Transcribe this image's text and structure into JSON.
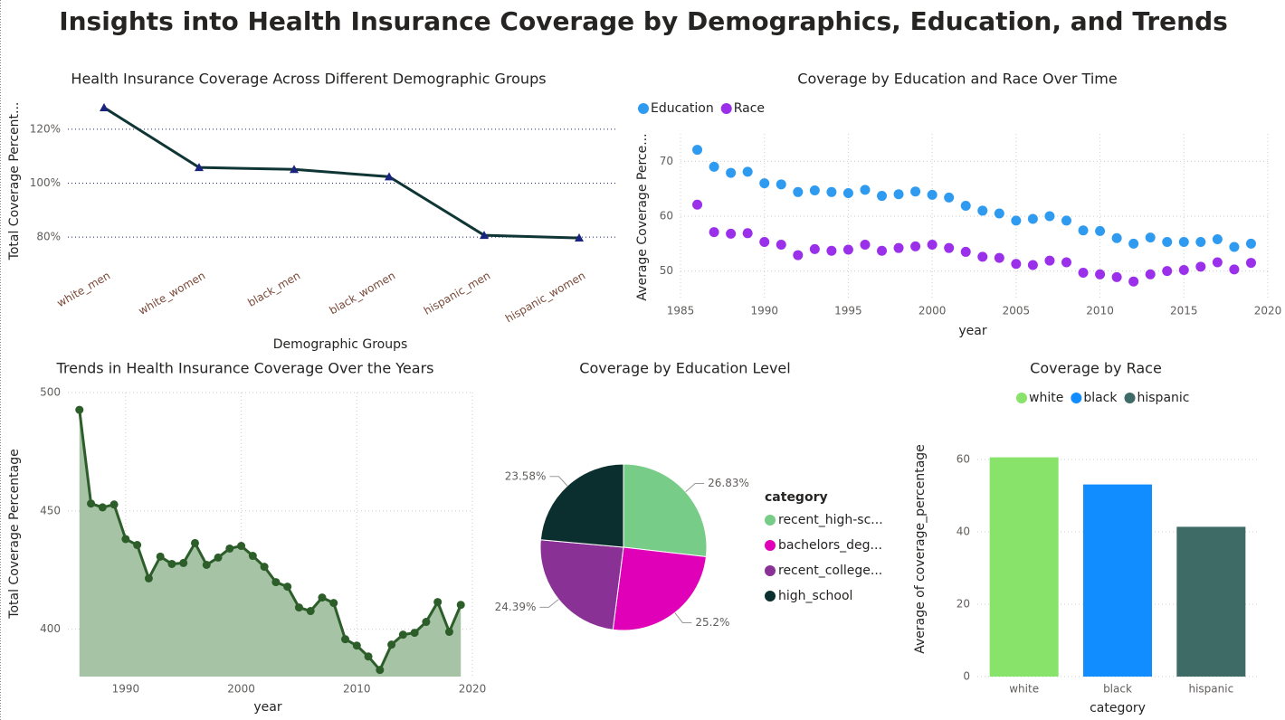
{
  "title": "Insights into Health Insurance Coverage by Demographics, Education, and Trends",
  "chart_data": [
    {
      "type": "line",
      "title": "Health Insurance Coverage Across Different Demographic Groups",
      "x_label": "Demographic Groups",
      "y_label": "Total Coverage Percent...",
      "categories": [
        "white_men",
        "white_women",
        "black_men",
        "black_women",
        "hispanic_men",
        "hispanic_women"
      ],
      "values": [
        128,
        105.8,
        105.1,
        102.4,
        80.7,
        79.7
      ],
      "color": "#0f3535",
      "marker_color": "#1a237e",
      "ylim": [
        70,
        131
      ],
      "yticks": [
        {
          "value": 80,
          "label": "80%"
        },
        {
          "value": 100,
          "label": "100%"
        },
        {
          "value": 120,
          "label": "120%"
        }
      ],
      "grid": true
    },
    {
      "type": "scatter",
      "title": "Coverage by Education and Race Over Time",
      "x_label": "year",
      "y_label": "Average Coverage Perce...",
      "x": [
        1986,
        1987,
        1988,
        1989,
        1990,
        1991,
        1992,
        1993,
        1994,
        1995,
        1996,
        1997,
        1998,
        1999,
        2000,
        2001,
        2002,
        2003,
        2004,
        2005,
        2006,
        2007,
        2008,
        2009,
        2010,
        2011,
        2012,
        2013,
        2014,
        2015,
        2016,
        2017,
        2018,
        2019
      ],
      "series": [
        {
          "name": "Education",
          "color": "#2f9bf0",
          "values": [
            72.1,
            69.0,
            67.9,
            68.1,
            66.0,
            65.8,
            64.4,
            64.7,
            64.4,
            64.2,
            64.8,
            63.7,
            64.0,
            64.5,
            63.9,
            63.4,
            61.9,
            61.0,
            60.5,
            59.2,
            59.5,
            60.0,
            59.2,
            57.4,
            57.3,
            56.0,
            55.0,
            56.1,
            55.3,
            55.3,
            55.3,
            55.8,
            54.4,
            55.0
          ]
        },
        {
          "name": "Race",
          "color": "#9b30ea",
          "values": [
            62.1,
            57.1,
            56.8,
            56.9,
            55.3,
            54.8,
            52.9,
            54.0,
            53.7,
            53.9,
            54.8,
            53.7,
            54.2,
            54.5,
            54.8,
            54.2,
            53.5,
            52.6,
            52.4,
            51.3,
            51.1,
            51.9,
            51.6,
            49.7,
            49.4,
            48.9,
            48.1,
            49.4,
            50.0,
            50.2,
            50.8,
            51.6,
            50.3,
            51.5
          ]
        }
      ],
      "xlim": [
        1985,
        2020
      ],
      "xticks": [
        1985,
        1990,
        1995,
        2000,
        2005,
        2010,
        2015,
        2020
      ],
      "ylim": [
        45,
        75
      ],
      "yticks": [
        50,
        60,
        70
      ],
      "grid": true
    },
    {
      "type": "area",
      "title": "Trends in Health Insurance Coverage Over the Years",
      "x_label": "year",
      "y_label": "Total Coverage Percentage",
      "x": [
        1986,
        1987,
        1988,
        1989,
        1990,
        1991,
        1992,
        1993,
        1994,
        1995,
        1996,
        1997,
        1998,
        1999,
        2000,
        2001,
        2002,
        2003,
        2004,
        2005,
        2006,
        2007,
        2008,
        2009,
        2010,
        2011,
        2012,
        2013,
        2014,
        2015,
        2016,
        2017,
        2018,
        2019
      ],
      "values": [
        492.7,
        453.1,
        451.5,
        452.7,
        438.1,
        435.6,
        421.5,
        430.7,
        427.6,
        428.0,
        436.4,
        427.2,
        430.3,
        434.1,
        435.2,
        431.0,
        426.4,
        419.9,
        418.0,
        409.2,
        407.7,
        413.4,
        411.1,
        395.8,
        393.1,
        388.5,
        382.8,
        393.5,
        397.7,
        398.5,
        403.1,
        411.5,
        398.9,
        410.3
      ],
      "color": "#2d5e2a",
      "fill": "#a6c3a6",
      "xlim": [
        1985,
        2020
      ],
      "xticks": [
        1990,
        2000,
        2010,
        2020
      ],
      "ylim": [
        380,
        500
      ],
      "yticks": [
        400,
        450,
        500
      ],
      "grid": true
    },
    {
      "type": "pie",
      "title": "Coverage by Education Level",
      "legend_title": "category",
      "categories": [
        "recent_high-sc...",
        "bachelors_deg...",
        "recent_college...",
        "high_school"
      ],
      "values": [
        26.83,
        25.2,
        24.39,
        23.58
      ],
      "value_labels": [
        "26.83%",
        "25.2%",
        "24.39%",
        "23.58%"
      ],
      "colors": [
        "#77cc88",
        "#e000b8",
        "#8a3196",
        "#0b2f2f"
      ]
    },
    {
      "type": "bar",
      "title": "Coverage by Race",
      "x_label": "category",
      "y_label": "Average of coverage_percentage",
      "categories": [
        "white",
        "black",
        "hispanic"
      ],
      "values": [
        60.6,
        53.1,
        41.4
      ],
      "colors": [
        "#88e36a",
        "#118dff",
        "#3f6b66"
      ],
      "ylim": [
        0,
        67
      ],
      "yticks": [
        0,
        20,
        40,
        60
      ],
      "grid": true
    }
  ]
}
